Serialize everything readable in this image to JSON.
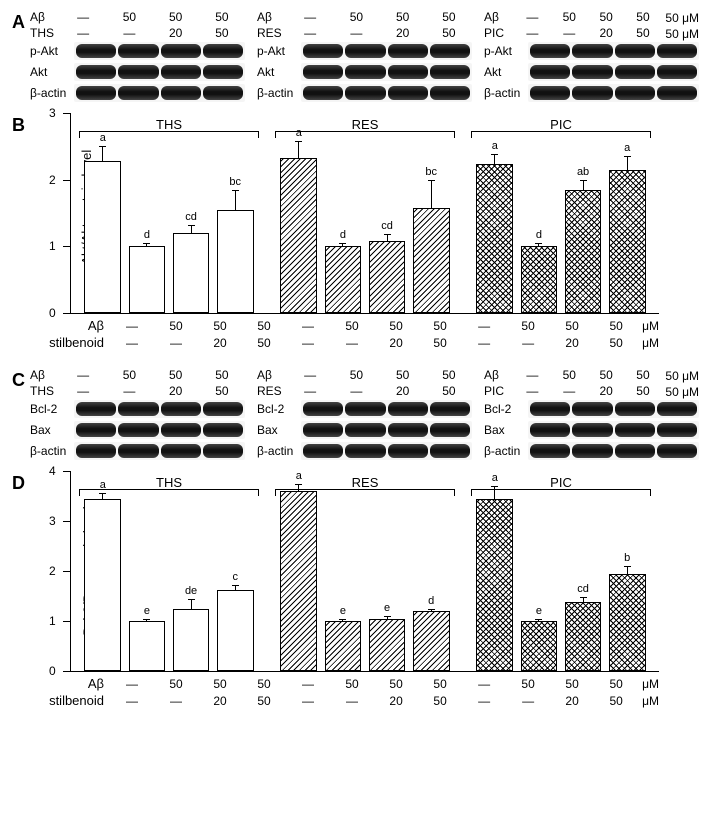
{
  "panelA": {
    "label": "A",
    "groups": [
      {
        "treatRowLabel": "Aβ",
        "stilbRowLabel": "THS",
        "ab": [
          "—",
          "50",
          "50",
          "50"
        ],
        "stilb": [
          "—",
          "—",
          "20",
          "50"
        ],
        "proteins": [
          "p-Akt",
          "Akt",
          "β-actin"
        ],
        "intensities_pAkt": [
          "",
          "",
          "",
          ""
        ],
        "unit": ""
      },
      {
        "treatRowLabel": "Aβ",
        "stilbRowLabel": "RES",
        "ab": [
          "—",
          "50",
          "50",
          "50"
        ],
        "stilb": [
          "—",
          "—",
          "20",
          "50"
        ],
        "proteins": [
          "p-Akt",
          "Akt",
          "β-actin"
        ],
        "unit": ""
      },
      {
        "treatRowLabel": "Aβ",
        "stilbRowLabel": "PIC",
        "ab": [
          "—",
          "50",
          "50",
          "50"
        ],
        "stilb": [
          "—",
          "—",
          "20",
          "50"
        ],
        "proteins": [
          "p-Akt",
          "Akt",
          "β-actin"
        ],
        "unit": "50 μM",
        "unit2": "50 μM"
      }
    ]
  },
  "panelB": {
    "label": "B",
    "ylabel": "p-Akt/Akt protein level\n(fold of Aβ)",
    "ymax": 3,
    "ytick_step": 1,
    "groups": [
      {
        "title": "THS",
        "fill": "plain",
        "bars": [
          {
            "v": 2.28,
            "err": 0.22,
            "sig": "a"
          },
          {
            "v": 1.0,
            "err": 0.05,
            "sig": "d"
          },
          {
            "v": 1.2,
            "err": 0.12,
            "sig": "cd"
          },
          {
            "v": 1.55,
            "err": 0.3,
            "sig": "bc"
          }
        ]
      },
      {
        "title": "RES",
        "fill": "hatch",
        "bars": [
          {
            "v": 2.32,
            "err": 0.26,
            "sig": "a"
          },
          {
            "v": 1.0,
            "err": 0.05,
            "sig": "d"
          },
          {
            "v": 1.08,
            "err": 0.1,
            "sig": "cd"
          },
          {
            "v": 1.58,
            "err": 0.42,
            "sig": "bc"
          }
        ]
      },
      {
        "title": "PIC",
        "fill": "cross",
        "bars": [
          {
            "v": 2.23,
            "err": 0.15,
            "sig": "a"
          },
          {
            "v": 1.0,
            "err": 0.05,
            "sig": "d"
          },
          {
            "v": 1.85,
            "err": 0.15,
            "sig": "ab"
          },
          {
            "v": 2.15,
            "err": 0.2,
            "sig": "a"
          }
        ]
      }
    ],
    "xAxis": {
      "rows": [
        {
          "label": "Aβ",
          "vals": [
            "—",
            "50",
            "50",
            "50"
          ],
          "unit": "μM"
        },
        {
          "label": "stilbenoid",
          "vals": [
            "—",
            "—",
            "20",
            "50"
          ],
          "unit": "μM"
        }
      ]
    }
  },
  "panelC": {
    "label": "C",
    "groups": [
      {
        "treatRowLabel": "Aβ",
        "stilbRowLabel": "THS",
        "ab": [
          "—",
          "50",
          "50",
          "50"
        ],
        "stilb": [
          "—",
          "—",
          "20",
          "50"
        ],
        "proteins": [
          "Bcl-2",
          "Bax",
          "β-actin"
        ]
      },
      {
        "treatRowLabel": "Aβ",
        "stilbRowLabel": "RES",
        "ab": [
          "—",
          "50",
          "50",
          "50"
        ],
        "stilb": [
          "—",
          "—",
          "20",
          "50"
        ],
        "proteins": [
          "Bcl-2",
          "Bax",
          "β-actin"
        ]
      },
      {
        "treatRowLabel": "Aβ",
        "stilbRowLabel": "PIC",
        "ab": [
          "—",
          "50",
          "50",
          "50"
        ],
        "stilb": [
          "—",
          "—",
          "20",
          "50"
        ],
        "proteins": [
          "Bcl-2",
          "Bax",
          "β-actin"
        ],
        "unit": "50 μM",
        "unit2": "50 μM"
      }
    ]
  },
  "panelD": {
    "label": "D",
    "ylabel": "Bcl-2/Bax protein level\n(fold of Aβ)",
    "ymax": 4,
    "ytick_step": 1,
    "groups": [
      {
        "title": "THS",
        "fill": "plain",
        "bars": [
          {
            "v": 3.45,
            "err": 0.12,
            "sig": "a"
          },
          {
            "v": 1.0,
            "err": 0.05,
            "sig": "e"
          },
          {
            "v": 1.25,
            "err": 0.2,
            "sig": "de"
          },
          {
            "v": 1.62,
            "err": 0.1,
            "sig": "c"
          }
        ]
      },
      {
        "title": "RES",
        "fill": "hatch",
        "bars": [
          {
            "v": 3.6,
            "err": 0.15,
            "sig": "a"
          },
          {
            "v": 1.0,
            "err": 0.05,
            "sig": "e"
          },
          {
            "v": 1.05,
            "err": 0.05,
            "sig": "e"
          },
          {
            "v": 1.2,
            "err": 0.05,
            "sig": "d"
          }
        ]
      },
      {
        "title": "PIC",
        "fill": "cross",
        "bars": [
          {
            "v": 3.45,
            "err": 0.25,
            "sig": "a"
          },
          {
            "v": 1.0,
            "err": 0.05,
            "sig": "e"
          },
          {
            "v": 1.38,
            "err": 0.1,
            "sig": "cd"
          },
          {
            "v": 1.95,
            "err": 0.15,
            "sig": "b"
          }
        ]
      }
    ],
    "xAxis": {
      "rows": [
        {
          "label": "Aβ",
          "vals": [
            "—",
            "50",
            "50",
            "50"
          ],
          "unit": "μM"
        },
        {
          "label": "stilbenoid",
          "vals": [
            "—",
            "—",
            "20",
            "50"
          ],
          "unit": "μM"
        }
      ]
    }
  },
  "colors": {
    "border": "#000000",
    "bg": "#ffffff"
  }
}
